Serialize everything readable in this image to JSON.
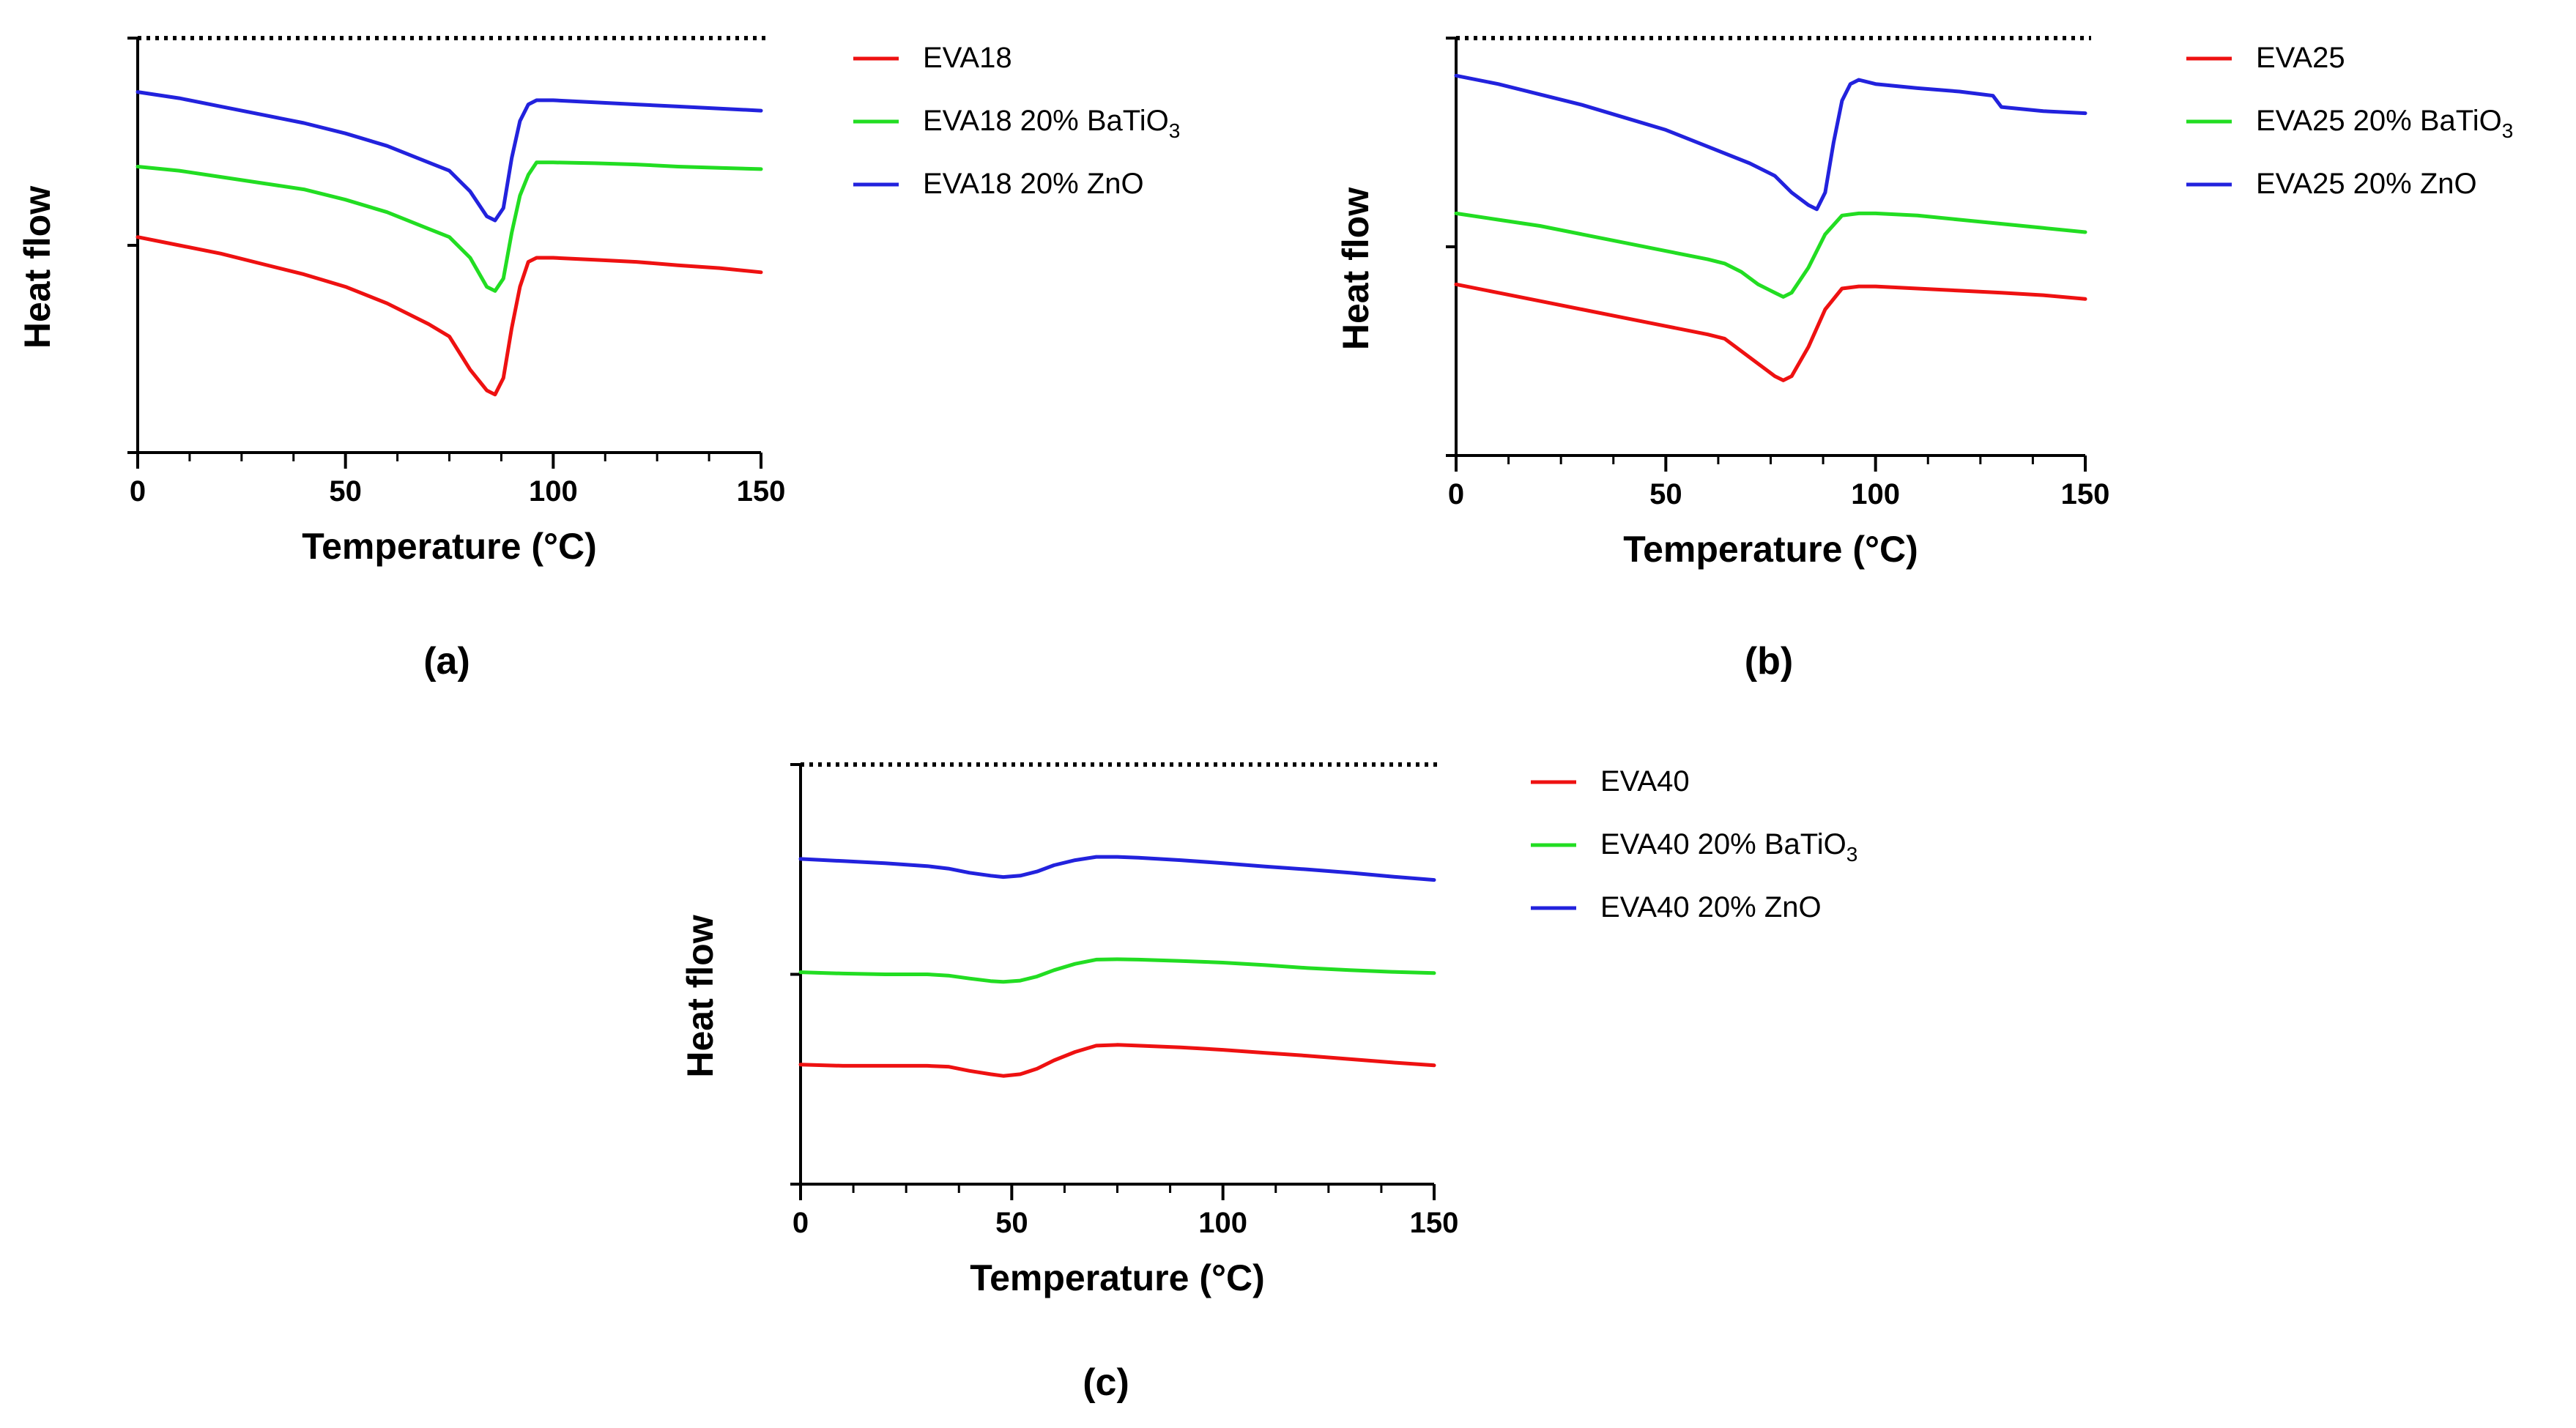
{
  "figure": {
    "panels": [
      "a",
      "b",
      "c"
    ]
  },
  "chart_data": [
    {
      "type": "line",
      "panel_label": "(a)",
      "xlabel": "Temperature (°C)",
      "ylabel": "Heat flow",
      "xlim": [
        0,
        150
      ],
      "ylim": [
        0,
        1
      ],
      "x_ticks": [
        0,
        50,
        100,
        150
      ],
      "x_tick_labels": [
        "0",
        "50",
        "100",
        "150"
      ],
      "reference_line": {
        "y": 1.0,
        "style": "dotted"
      },
      "legend_position": "right",
      "series": [
        {
          "name": "EVA18",
          "legend_main": "EVA18",
          "legend_sub": "",
          "legend_tail": "",
          "color": "#ee1111",
          "x": [
            0,
            10,
            20,
            30,
            40,
            50,
            60,
            70,
            75,
            80,
            84,
            86,
            88,
            90,
            92,
            94,
            96,
            100,
            110,
            120,
            130,
            140,
            150
          ],
          "y": [
            0.52,
            0.5,
            0.48,
            0.455,
            0.43,
            0.4,
            0.36,
            0.31,
            0.28,
            0.2,
            0.15,
            0.14,
            0.18,
            0.3,
            0.4,
            0.46,
            0.47,
            0.47,
            0.465,
            0.46,
            0.452,
            0.445,
            0.435
          ]
        },
        {
          "name": "EVA18 20% BaTiO3",
          "legend_main": "EVA18 20% BaTiO",
          "legend_sub": "3",
          "legend_tail": "",
          "color": "#22dd22",
          "x": [
            0,
            10,
            20,
            30,
            40,
            50,
            60,
            70,
            75,
            80,
            84,
            86,
            88,
            90,
            92,
            94,
            96,
            100,
            110,
            120,
            130,
            140,
            150
          ],
          "y": [
            0.69,
            0.68,
            0.665,
            0.65,
            0.635,
            0.61,
            0.58,
            0.54,
            0.52,
            0.47,
            0.4,
            0.39,
            0.42,
            0.53,
            0.62,
            0.67,
            0.7,
            0.7,
            0.698,
            0.695,
            0.69,
            0.687,
            0.684
          ]
        },
        {
          "name": "EVA18 20% ZnO",
          "legend_main": "EVA18 20% ZnO",
          "legend_sub": "",
          "legend_tail": "",
          "color": "#2222dd",
          "x": [
            0,
            10,
            20,
            30,
            40,
            50,
            60,
            70,
            75,
            80,
            84,
            86,
            88,
            90,
            92,
            94,
            96,
            100,
            110,
            120,
            130,
            140,
            150
          ],
          "y": [
            0.87,
            0.855,
            0.835,
            0.815,
            0.795,
            0.77,
            0.74,
            0.7,
            0.68,
            0.63,
            0.57,
            0.56,
            0.59,
            0.71,
            0.8,
            0.84,
            0.85,
            0.85,
            0.845,
            0.84,
            0.835,
            0.83,
            0.825
          ]
        }
      ]
    },
    {
      "type": "line",
      "panel_label": "(b)",
      "xlabel": "Temperature (°C)",
      "ylabel": "Heat flow",
      "xlim": [
        0,
        150
      ],
      "ylim": [
        0,
        1
      ],
      "x_ticks": [
        0,
        50,
        100,
        150
      ],
      "x_tick_labels": [
        "0",
        "50",
        "100",
        "150"
      ],
      "reference_line": {
        "y": 1.0,
        "style": "dotted"
      },
      "legend_position": "right",
      "series": [
        {
          "name": "EVA25",
          "legend_main": "EVA25",
          "legend_sub": "",
          "legend_tail": "",
          "color": "#ee1111",
          "x": [
            0,
            10,
            20,
            30,
            40,
            50,
            60,
            64,
            68,
            72,
            76,
            78,
            80,
            84,
            88,
            92,
            96,
            100,
            110,
            120,
            130,
            140,
            150
          ],
          "y": [
            0.41,
            0.39,
            0.37,
            0.35,
            0.33,
            0.31,
            0.29,
            0.28,
            0.25,
            0.22,
            0.19,
            0.18,
            0.19,
            0.26,
            0.35,
            0.4,
            0.405,
            0.405,
            0.4,
            0.395,
            0.39,
            0.384,
            0.375
          ]
        },
        {
          "name": "EVA25 20% BaTiO3",
          "legend_main": "EVA25 20% BaTiO",
          "legend_sub": "3",
          "legend_tail": "",
          "color": "#22dd22",
          "x": [
            0,
            10,
            20,
            30,
            40,
            50,
            60,
            64,
            68,
            72,
            76,
            78,
            80,
            84,
            88,
            92,
            96,
            100,
            110,
            120,
            130,
            140,
            150
          ],
          "y": [
            0.58,
            0.565,
            0.55,
            0.53,
            0.51,
            0.49,
            0.47,
            0.46,
            0.44,
            0.41,
            0.39,
            0.38,
            0.39,
            0.45,
            0.53,
            0.575,
            0.58,
            0.58,
            0.575,
            0.565,
            0.555,
            0.545,
            0.535
          ]
        },
        {
          "name": "EVA25 20% ZnO",
          "legend_main": "EVA25 20% ZnO",
          "legend_sub": "",
          "legend_tail": "",
          "color": "#2222dd",
          "x": [
            0,
            10,
            20,
            30,
            40,
            50,
            60,
            70,
            76,
            80,
            84,
            86,
            88,
            90,
            92,
            94,
            96,
            100,
            110,
            120,
            128,
            130,
            140,
            150
          ],
          "y": [
            0.91,
            0.89,
            0.865,
            0.84,
            0.81,
            0.78,
            0.74,
            0.7,
            0.67,
            0.63,
            0.6,
            0.59,
            0.63,
            0.75,
            0.85,
            0.89,
            0.9,
            0.89,
            0.88,
            0.872,
            0.862,
            0.835,
            0.825,
            0.82
          ]
        }
      ]
    },
    {
      "type": "line",
      "panel_label": "(c)",
      "xlabel": "Temperature (°C)",
      "ylabel": "Heat flow",
      "xlim": [
        0,
        150
      ],
      "ylim": [
        0,
        1
      ],
      "x_ticks": [
        0,
        50,
        100,
        150
      ],
      "x_tick_labels": [
        "0",
        "50",
        "100",
        "150"
      ],
      "reference_line": {
        "y": 1.0,
        "style": "dotted"
      },
      "legend_position": "right",
      "series": [
        {
          "name": "EVA40",
          "legend_main": "EVA40",
          "legend_sub": "",
          "legend_tail": "",
          "color": "#ee1111",
          "x": [
            0,
            10,
            20,
            30,
            35,
            40,
            45,
            48,
            52,
            56,
            60,
            65,
            70,
            75,
            80,
            90,
            100,
            110,
            120,
            130,
            140,
            150
          ],
          "y": [
            0.285,
            0.282,
            0.282,
            0.282,
            0.28,
            0.27,
            0.262,
            0.258,
            0.262,
            0.275,
            0.295,
            0.315,
            0.33,
            0.332,
            0.33,
            0.326,
            0.32,
            0.313,
            0.306,
            0.298,
            0.29,
            0.283
          ]
        },
        {
          "name": "EVA40 20% BaTiO3",
          "legend_main": "EVA40 20% BaTiO",
          "legend_sub": "3",
          "legend_tail": "",
          "color": "#22dd22",
          "x": [
            0,
            10,
            20,
            30,
            35,
            40,
            45,
            48,
            52,
            56,
            60,
            65,
            70,
            75,
            80,
            90,
            100,
            110,
            120,
            130,
            140,
            150
          ],
          "y": [
            0.505,
            0.502,
            0.5,
            0.5,
            0.497,
            0.49,
            0.484,
            0.482,
            0.485,
            0.495,
            0.51,
            0.525,
            0.535,
            0.536,
            0.535,
            0.532,
            0.528,
            0.522,
            0.515,
            0.51,
            0.506,
            0.503
          ]
        },
        {
          "name": "EVA40 20% ZnO",
          "legend_main": "EVA40 20% ZnO",
          "legend_sub": "",
          "legend_tail": "",
          "color": "#2222dd",
          "x": [
            0,
            10,
            20,
            30,
            35,
            40,
            45,
            48,
            52,
            56,
            60,
            65,
            70,
            75,
            80,
            90,
            100,
            110,
            120,
            130,
            140,
            150
          ],
          "y": [
            0.775,
            0.77,
            0.765,
            0.758,
            0.752,
            0.742,
            0.735,
            0.732,
            0.735,
            0.745,
            0.76,
            0.772,
            0.78,
            0.78,
            0.778,
            0.772,
            0.765,
            0.757,
            0.75,
            0.742,
            0.733,
            0.725
          ]
        }
      ]
    }
  ]
}
